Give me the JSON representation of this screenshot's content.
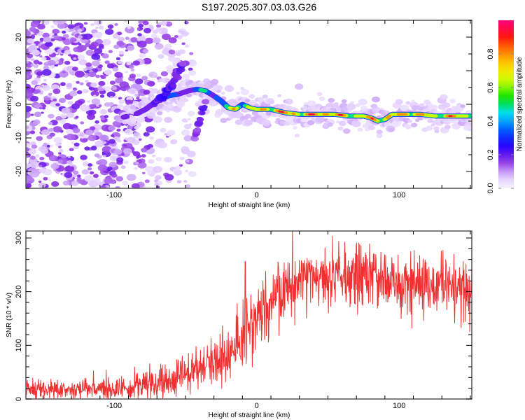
{
  "title": "S197.2025.307.03.03.G26",
  "chart_data": [
    {
      "type": "heatmap",
      "name": "spectrogram",
      "xlabel": "Height of straight line (km)",
      "ylabel": "Frequency (Hz)",
      "xlim": [
        -162,
        151
      ],
      "ylim": [
        -25,
        25
      ],
      "xticks": [
        -100,
        0,
        100
      ],
      "xtick_labels": [
        "-100",
        "0",
        "100"
      ],
      "yticks": [
        -20,
        -10,
        0,
        10,
        20
      ],
      "ytick_labels": [
        "-20",
        "-10",
        "0",
        "10",
        "20"
      ],
      "colorbar": {
        "label": "Normalized spectral amplitude",
        "range": [
          0,
          1
        ],
        "ticks": [
          0.0,
          0.2,
          0.4,
          0.6,
          0.8
        ],
        "tick_labels": [
          "0.0",
          "0.2",
          "0.4",
          "0.6",
          "0.8"
        ],
        "colormap": [
          "#ffffff",
          "#e0c8ff",
          "#8a2be2",
          "#2000ff",
          "#0060ff",
          "#00e0ff",
          "#00e000",
          "#c0ff00",
          "#ffe000",
          "#ff8000",
          "#ff1010",
          "#ff0080"
        ]
      },
      "main_ridge": {
        "description": "Dominant signal track (frequency vs height) with normalized amplitude",
        "x": [
          -95,
          -85,
          -78,
          -70,
          -62,
          -55,
          -48,
          -42,
          -36,
          -30,
          -25,
          -20,
          -15,
          -10,
          -5,
          0,
          5,
          10,
          20,
          30,
          45,
          55,
          65,
          75,
          80,
          85,
          90,
          95,
          105,
          115,
          125,
          140,
          150
        ],
        "y": [
          -4,
          -3,
          -1.5,
          1,
          2.5,
          3,
          4,
          4.5,
          4,
          2.5,
          1,
          -1,
          -1.5,
          0,
          -1,
          -1.5,
          -1.5,
          -1.5,
          -2.5,
          -3,
          -3,
          -3,
          -3.5,
          -3.5,
          -4,
          -5,
          -4.5,
          -3,
          -3,
          -3,
          -3.5,
          -3.5,
          -3.5
        ],
        "amplitude": [
          0.15,
          0.2,
          0.25,
          0.3,
          0.35,
          0.3,
          0.35,
          0.4,
          0.45,
          0.4,
          0.35,
          0.6,
          0.75,
          0.6,
          0.7,
          0.75,
          0.8,
          0.85,
          0.9,
          0.8,
          0.95,
          0.9,
          0.7,
          0.85,
          0.8,
          0.9,
          0.85,
          0.75,
          0.9,
          0.8,
          0.75,
          0.85,
          0.7
        ]
      },
      "secondary_ridges": [
        {
          "x": [
            -72,
            -65,
            -58,
            -52
          ],
          "y": [
            0,
            3,
            7,
            12
          ],
          "amplitude": [
            0.2,
            0.25,
            0.2,
            0.2
          ]
        },
        {
          "x": [
            -44,
            -40,
            -36
          ],
          "y": [
            -10,
            -5,
            1
          ],
          "amplitude": [
            0.15,
            0.2,
            0.2
          ]
        }
      ],
      "noise_region": {
        "x_range": [
          -162,
          -75
        ],
        "level": 0.12
      }
    },
    {
      "type": "line",
      "name": "snr",
      "xlabel": "Height of straight line (km)",
      "ylabel": "SNR (10 * v/v)",
      "xlim": [
        -162,
        151
      ],
      "ylim": [
        0,
        313
      ],
      "xticks": [
        -100,
        0,
        100
      ],
      "xtick_labels": [
        "-100",
        "0",
        "100"
      ],
      "yticks": [
        0,
        100,
        200,
        300
      ],
      "ytick_labels": [
        "0",
        "100",
        "200",
        "300"
      ],
      "color": "#f03030",
      "trend": {
        "x": [
          -162,
          -120,
          -90,
          -75,
          -60,
          -45,
          -30,
          -15,
          -5,
          0,
          10,
          20,
          30,
          50,
          70,
          90,
          110,
          130,
          151
        ],
        "y": [
          18,
          18,
          20,
          28,
          35,
          48,
          70,
          90,
          120,
          150,
          180,
          205,
          225,
          235,
          230,
          220,
          215,
          210,
          205
        ]
      },
      "noise_amplitude": {
        "x": [
          -162,
          -90,
          -30,
          0,
          30,
          151
        ],
        "y": [
          12,
          15,
          30,
          40,
          40,
          38
        ]
      },
      "notable_peaks": [
        {
          "x": -8,
          "y": 256
        },
        {
          "x": 25,
          "y": 313
        }
      ]
    }
  ]
}
